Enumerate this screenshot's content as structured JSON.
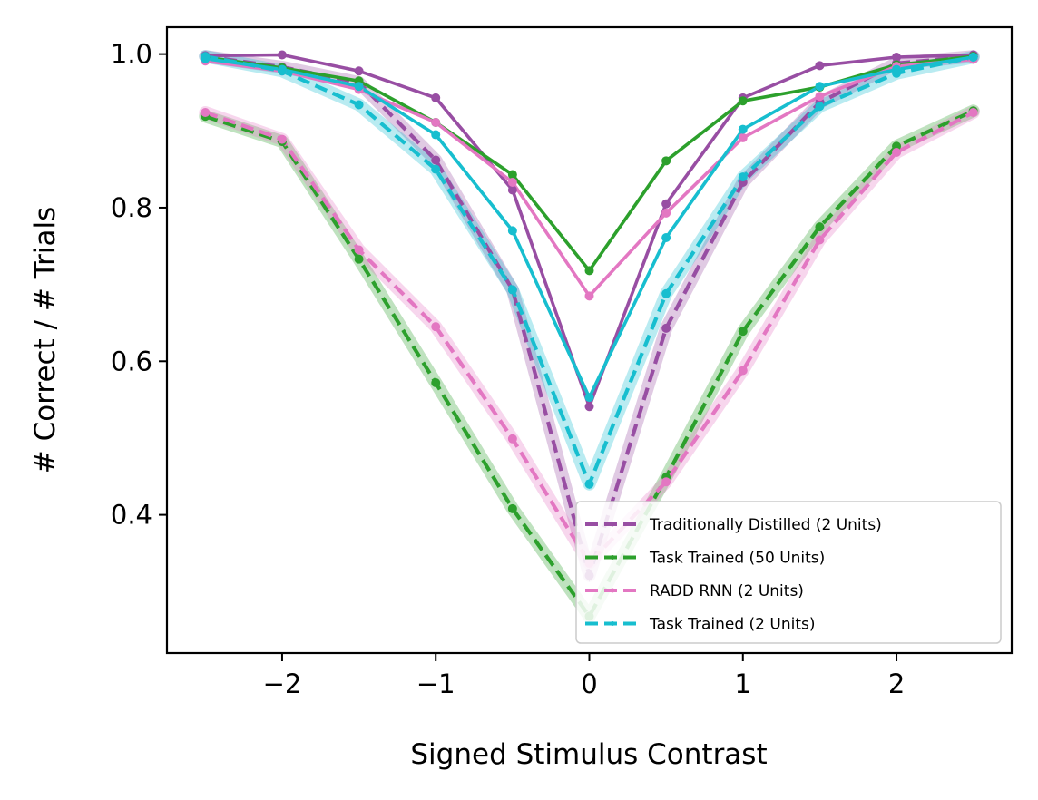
{
  "chart_data": {
    "type": "line",
    "title": "",
    "xlabel": "Signed Stimulus Contrast",
    "ylabel": "# Correct / # Trials",
    "xlim": [
      -2.75,
      2.75
    ],
    "ylim": [
      0.22,
      1.035
    ],
    "xticks": [
      -2,
      -1,
      0,
      1,
      2
    ],
    "xtick_labels": [
      "−2",
      "−1",
      "0",
      "1",
      "2"
    ],
    "yticks": [
      0.4,
      0.6,
      0.8,
      1.0
    ],
    "ytick_labels": [
      "0.4",
      "0.6",
      "0.8",
      "1.0"
    ],
    "grid": false,
    "legend_position": "lower-right",
    "x": [
      -2.5,
      -2.0,
      -1.5,
      -1.0,
      -0.5,
      0.0,
      0.5,
      1.0,
      1.5,
      2.0,
      2.5
    ],
    "series": [
      {
        "name": "Traditionally Distilled (2 Units)",
        "color": "#984ea3",
        "solid": [
          0.998,
          0.999,
          0.978,
          0.943,
          0.823,
          0.541,
          0.805,
          0.943,
          0.985,
          0.996,
          0.999
        ],
        "dashed": [
          0.997,
          0.983,
          0.963,
          0.862,
          0.693,
          0.321,
          0.643,
          0.833,
          0.937,
          0.988,
          0.997
        ]
      },
      {
        "name": "Task Trained (50 Units)",
        "color": "#2ca02c",
        "solid": [
          0.996,
          0.982,
          0.965,
          0.911,
          0.843,
          0.718,
          0.861,
          0.939,
          0.957,
          0.986,
          0.997
        ],
        "dashed": [
          0.919,
          0.886,
          0.733,
          0.572,
          0.408,
          0.268,
          0.449,
          0.639,
          0.775,
          0.88,
          0.926
        ]
      },
      {
        "name": "RADD RNN (2 Units)",
        "color": "#e377c2",
        "solid": [
          0.991,
          0.978,
          0.954,
          0.911,
          0.833,
          0.685,
          0.793,
          0.891,
          0.945,
          0.984,
          0.993
        ],
        "dashed": [
          0.924,
          0.889,
          0.745,
          0.645,
          0.499,
          0.337,
          0.443,
          0.588,
          0.758,
          0.872,
          0.924
        ]
      },
      {
        "name": "Task Trained (2 Units)",
        "color": "#17becf",
        "solid": [
          0.994,
          0.98,
          0.958,
          0.895,
          0.77,
          0.553,
          0.761,
          0.902,
          0.958,
          0.98,
          0.996
        ],
        "dashed": [
          0.997,
          0.978,
          0.934,
          0.85,
          0.693,
          0.44,
          0.688,
          0.84,
          0.932,
          0.975,
          0.996
        ]
      }
    ]
  }
}
